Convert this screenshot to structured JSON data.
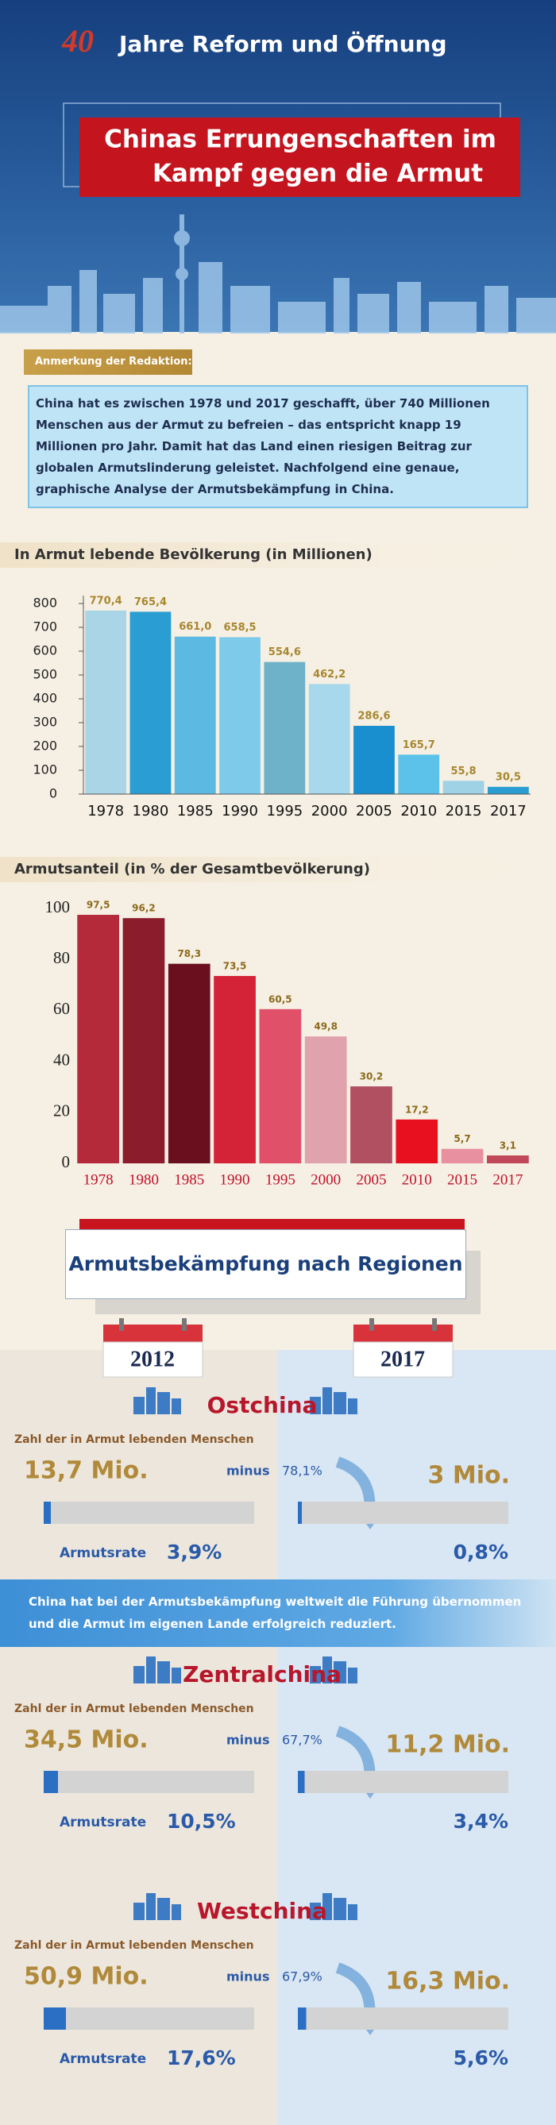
{
  "header": {
    "logo": "40",
    "title": "Jahre Reform und Öffnung",
    "headline": [
      "Chinas Errungenschaften im",
      "Kampf gegen die Armut"
    ]
  },
  "note": {
    "tag": "Anmerkung der Redaktion:",
    "text": "China hat es zwischen 1978 und 2017 geschafft, über 740 Millionen Menschen aus der Armut zu befreien – das entspricht knapp 19 Millionen pro Jahr. Damit hat das Land einen riesigen Beitrag zur globalen Armutslinderung geleistet. Nachfolgend eine genaue, graphische Analyse der Armutsbekämpfung in China."
  },
  "chart_data": [
    {
      "type": "bar",
      "title": "In Armut lebende Bevölkerung (in Millionen)",
      "categories": [
        "1978",
        "1980",
        "1985",
        "1990",
        "1995",
        "2000",
        "2005",
        "2010",
        "2015",
        "2017"
      ],
      "values": [
        770.4,
        765.4,
        661.0,
        658.5,
        554.6,
        462.2,
        286.6,
        165.7,
        55.8,
        30.5
      ],
      "value_labels": [
        "770,4",
        "765,4",
        "661,0",
        "658,5",
        "554,6",
        "462,2",
        "286,6",
        "165,7",
        "55,8",
        "30,5"
      ],
      "colors": [
        "#a9d5e6",
        "#2a9dd2",
        "#5bb9e2",
        "#7ecaea",
        "#6eb2ca",
        "#a8d8ec",
        "#1a8fcf",
        "#5cc2ea",
        "#a0d2e6",
        "#2a9dd2"
      ],
      "ylim": [
        0,
        800
      ],
      "yticks": [
        0,
        100,
        200,
        300,
        400,
        500,
        600,
        700,
        800
      ]
    },
    {
      "type": "bar",
      "title": "Armutsanteil (in % der Gesamtbevölkerung)",
      "categories": [
        "1978",
        "1980",
        "1985",
        "1990",
        "1995",
        "2000",
        "2005",
        "2010",
        "2015",
        "2017"
      ],
      "values": [
        97.5,
        96.2,
        78.3,
        73.5,
        60.5,
        49.8,
        30.2,
        17.2,
        5.7,
        3.1
      ],
      "value_labels": [
        "97,5",
        "96,2",
        "78,3",
        "73,5",
        "60,5",
        "49,8",
        "30,2",
        "17,2",
        "5,7",
        "3,1"
      ],
      "colors": [
        "#b52a3a",
        "#8b1c2c",
        "#6a0f1e",
        "#d42236",
        "#e05068",
        "#e0a2ac",
        "#b05060",
        "#e8101e",
        "#e890a0",
        "#c04858"
      ],
      "ylim": [
        0,
        100
      ],
      "yticks": [
        0,
        20,
        40,
        60,
        80,
        100
      ]
    }
  ],
  "regions_title": "Armutsbekämpfung nach Regionen",
  "years": [
    "2012",
    "2017"
  ],
  "banner": "China hat bei der Armutsbekämpfung weltweit die Führung übernommen und die Armut im eigenen Lande erfolgreich reduziert.",
  "regions": [
    {
      "name": "Ostchina",
      "people_label": "Zahl der in Armut lebenden Menschen",
      "people_2012": "13,7 Mio.",
      "minus": "minus",
      "change": "78,1%",
      "people_2017": "3 Mio.",
      "rate_label": "Armutsrate",
      "rate_2012": "3,9%",
      "rate_2017": "0,8%"
    },
    {
      "name": "Zentralchina",
      "people_label": "Zahl der in Armut lebenden Menschen",
      "people_2012": "34,5 Mio.",
      "minus": "minus",
      "change": "67,7%",
      "people_2017": "11,2 Mio.",
      "rate_label": "Armutsrate",
      "rate_2012": "10,5%",
      "rate_2017": "3,4%"
    },
    {
      "name": "Westchina",
      "people_label": "Zahl der in Armut lebenden Menschen",
      "people_2012": "50,9 Mio.",
      "minus": "minus",
      "change": "67,9%",
      "people_2017": "16,3 Mio.",
      "rate_label": "Armutsrate",
      "rate_2012": "17,6%",
      "rate_2017": "5,6%"
    }
  ]
}
